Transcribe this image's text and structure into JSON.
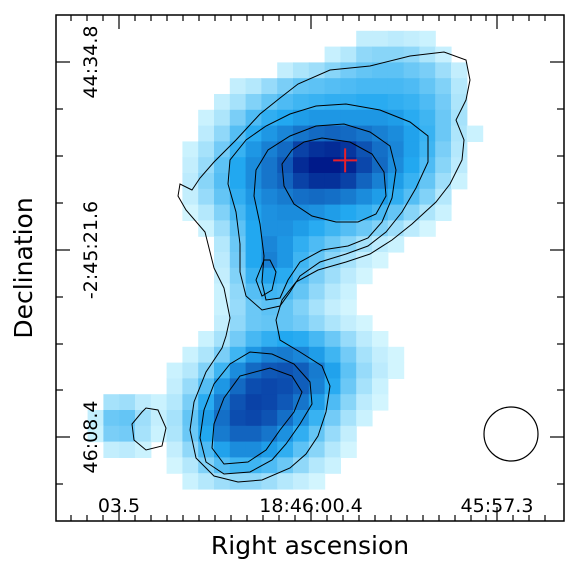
{
  "chart_data": {
    "type": "heatmap",
    "title": "",
    "xlabel": "Right ascension",
    "ylabel": "Declination",
    "x_tick_labels": [
      "03.5",
      "18:46:00.4",
      "45:57.3"
    ],
    "y_tick_labels": [
      "44:34.8",
      "-2:45:21.6",
      "46:08.4"
    ],
    "grid": false,
    "colormap": "white-cyan-blue",
    "colors": {
      "low": "#d9f8ff",
      "mid": "#22a8f0",
      "high": "#001a8a",
      "contour": "#000000",
      "marker": "#e8202a"
    },
    "intensity_grid": {
      "description_units": "relative intensity 0-1, rows top to bottom, columns left to right",
      "rows": [
        [
          0,
          0,
          0,
          0,
          0,
          0,
          0,
          0,
          0,
          0,
          0,
          0,
          0,
          0,
          0,
          0,
          0,
          0,
          0,
          0,
          0,
          0,
          0,
          0,
          0,
          0,
          0,
          0,
          0,
          0,
          0,
          0
        ],
        [
          0,
          0,
          0,
          0,
          0,
          0,
          0,
          0,
          0,
          0,
          0,
          0,
          0,
          0,
          0,
          0,
          0,
          0,
          0,
          0.06,
          0.06,
          0.08,
          0.06,
          0.04,
          0,
          0,
          0,
          0,
          0,
          0,
          0,
          0
        ],
        [
          0,
          0,
          0,
          0,
          0,
          0,
          0,
          0,
          0,
          0,
          0,
          0,
          0,
          0,
          0,
          0,
          0,
          0.05,
          0.1,
          0.2,
          0.22,
          0.22,
          0.2,
          0.12,
          0.05,
          0,
          0,
          0,
          0,
          0,
          0,
          0
        ],
        [
          0,
          0,
          0,
          0,
          0,
          0,
          0,
          0,
          0,
          0,
          0,
          0,
          0,
          0,
          0.06,
          0.12,
          0.16,
          0.22,
          0.28,
          0.32,
          0.34,
          0.34,
          0.3,
          0.26,
          0.16,
          0.06,
          0,
          0,
          0,
          0,
          0,
          0
        ],
        [
          0,
          0,
          0,
          0,
          0,
          0,
          0,
          0,
          0,
          0,
          0,
          0.06,
          0.1,
          0.18,
          0.26,
          0.32,
          0.34,
          0.36,
          0.38,
          0.4,
          0.4,
          0.4,
          0.38,
          0.32,
          0.24,
          0.1,
          0,
          0,
          0,
          0,
          0,
          0
        ],
        [
          0,
          0,
          0,
          0,
          0,
          0,
          0,
          0,
          0,
          0,
          0.06,
          0.14,
          0.24,
          0.32,
          0.38,
          0.42,
          0.44,
          0.46,
          0.46,
          0.48,
          0.48,
          0.46,
          0.44,
          0.38,
          0.28,
          0.12,
          0,
          0,
          0,
          0,
          0,
          0
        ],
        [
          0,
          0,
          0,
          0,
          0,
          0,
          0,
          0,
          0,
          0.04,
          0.12,
          0.26,
          0.38,
          0.46,
          0.5,
          0.54,
          0.56,
          0.56,
          0.56,
          0.56,
          0.56,
          0.54,
          0.48,
          0.42,
          0.3,
          0.14,
          0,
          0,
          0,
          0,
          0,
          0
        ],
        [
          0,
          0,
          0,
          0,
          0,
          0,
          0,
          0,
          0,
          0.08,
          0.2,
          0.36,
          0.48,
          0.56,
          0.62,
          0.68,
          0.72,
          0.74,
          0.72,
          0.68,
          0.64,
          0.6,
          0.52,
          0.44,
          0.3,
          0.12,
          0.04,
          0,
          0,
          0,
          0,
          0
        ],
        [
          0,
          0,
          0,
          0,
          0,
          0,
          0,
          0,
          0.04,
          0.14,
          0.28,
          0.44,
          0.56,
          0.64,
          0.72,
          0.86,
          0.92,
          0.94,
          0.9,
          0.8,
          0.7,
          0.62,
          0.52,
          0.42,
          0.26,
          0.1,
          0,
          0,
          0,
          0,
          0,
          0
        ],
        [
          0,
          0,
          0,
          0,
          0,
          0,
          0,
          0,
          0.06,
          0.18,
          0.34,
          0.5,
          0.6,
          0.68,
          0.78,
          0.94,
          1.0,
          1.0,
          0.96,
          0.84,
          0.72,
          0.6,
          0.5,
          0.38,
          0.22,
          0.08,
          0,
          0,
          0,
          0,
          0,
          0
        ],
        [
          0,
          0,
          0,
          0,
          0,
          0,
          0,
          0,
          0.08,
          0.22,
          0.36,
          0.5,
          0.6,
          0.68,
          0.74,
          0.86,
          0.92,
          0.92,
          0.86,
          0.74,
          0.64,
          0.54,
          0.44,
          0.32,
          0.16,
          0.04,
          0,
          0,
          0,
          0,
          0,
          0
        ],
        [
          0,
          0,
          0,
          0,
          0,
          0,
          0,
          0,
          0.06,
          0.18,
          0.32,
          0.46,
          0.56,
          0.62,
          0.66,
          0.7,
          0.72,
          0.7,
          0.66,
          0.6,
          0.54,
          0.46,
          0.36,
          0.24,
          0.1,
          0,
          0,
          0,
          0,
          0,
          0,
          0
        ],
        [
          0,
          0,
          0,
          0,
          0,
          0,
          0,
          0,
          0.02,
          0.1,
          0.24,
          0.4,
          0.52,
          0.58,
          0.6,
          0.6,
          0.58,
          0.54,
          0.5,
          0.46,
          0.4,
          0.32,
          0.22,
          0.12,
          0.04,
          0,
          0,
          0,
          0,
          0,
          0,
          0
        ],
        [
          0,
          0,
          0,
          0,
          0,
          0,
          0,
          0,
          0,
          0.04,
          0.16,
          0.34,
          0.5,
          0.58,
          0.58,
          0.54,
          0.48,
          0.42,
          0.36,
          0.3,
          0.24,
          0.16,
          0.08,
          0.02,
          0,
          0,
          0,
          0,
          0,
          0,
          0,
          0
        ],
        [
          0,
          0,
          0,
          0,
          0,
          0,
          0,
          0,
          0,
          0,
          0.1,
          0.3,
          0.5,
          0.62,
          0.56,
          0.46,
          0.38,
          0.3,
          0.22,
          0.14,
          0.08,
          0.04,
          0,
          0,
          0,
          0,
          0,
          0,
          0,
          0,
          0,
          0
        ],
        [
          0,
          0,
          0,
          0,
          0,
          0,
          0,
          0,
          0,
          0,
          0.08,
          0.28,
          0.5,
          0.64,
          0.56,
          0.42,
          0.32,
          0.22,
          0.14,
          0.06,
          0.02,
          0,
          0,
          0,
          0,
          0,
          0,
          0,
          0,
          0,
          0,
          0
        ],
        [
          0,
          0,
          0,
          0,
          0,
          0,
          0,
          0,
          0,
          0,
          0.06,
          0.24,
          0.44,
          0.52,
          0.48,
          0.38,
          0.26,
          0.16,
          0.08,
          0.02,
          0,
          0,
          0,
          0,
          0,
          0,
          0,
          0,
          0,
          0,
          0,
          0
        ],
        [
          0,
          0,
          0,
          0,
          0,
          0,
          0,
          0,
          0,
          0,
          0.04,
          0.2,
          0.36,
          0.42,
          0.4,
          0.32,
          0.2,
          0.1,
          0.04,
          0,
          0,
          0,
          0,
          0,
          0,
          0,
          0,
          0,
          0,
          0,
          0,
          0
        ],
        [
          0,
          0,
          0,
          0,
          0,
          0,
          0,
          0,
          0,
          0,
          0.04,
          0.18,
          0.3,
          0.34,
          0.32,
          0.24,
          0.14,
          0.06,
          0.02,
          0,
          0,
          0,
          0,
          0,
          0,
          0,
          0,
          0,
          0,
          0,
          0,
          0
        ],
        [
          0,
          0,
          0,
          0,
          0,
          0,
          0,
          0,
          0,
          0,
          0.06,
          0.2,
          0.3,
          0.32,
          0.32,
          0.28,
          0.2,
          0.12,
          0.06,
          0.02,
          0,
          0,
          0,
          0,
          0,
          0,
          0,
          0,
          0,
          0,
          0,
          0
        ],
        [
          0,
          0,
          0,
          0,
          0,
          0,
          0,
          0,
          0,
          0.04,
          0.14,
          0.28,
          0.4,
          0.46,
          0.5,
          0.48,
          0.4,
          0.3,
          0.18,
          0.08,
          0.02,
          0,
          0,
          0,
          0,
          0,
          0,
          0,
          0,
          0,
          0,
          0
        ],
        [
          0,
          0,
          0,
          0,
          0,
          0,
          0,
          0,
          0.04,
          0.12,
          0.26,
          0.42,
          0.56,
          0.64,
          0.66,
          0.62,
          0.54,
          0.42,
          0.28,
          0.14,
          0.06,
          0.02,
          0,
          0,
          0,
          0,
          0,
          0,
          0,
          0,
          0,
          0
        ],
        [
          0,
          0,
          0,
          0,
          0,
          0,
          0,
          0.04,
          0.1,
          0.24,
          0.42,
          0.6,
          0.72,
          0.78,
          0.8,
          0.76,
          0.66,
          0.52,
          0.34,
          0.18,
          0.08,
          0.02,
          0,
          0,
          0,
          0,
          0,
          0,
          0,
          0,
          0,
          0
        ],
        [
          0,
          0,
          0,
          0,
          0,
          0,
          0,
          0.06,
          0.18,
          0.36,
          0.56,
          0.72,
          0.82,
          0.84,
          0.82,
          0.76,
          0.64,
          0.48,
          0.3,
          0.14,
          0.04,
          0,
          0,
          0,
          0,
          0,
          0,
          0,
          0,
          0,
          0,
          0
        ],
        [
          0,
          0,
          0,
          0.14,
          0.16,
          0.08,
          0.04,
          0.1,
          0.26,
          0.48,
          0.66,
          0.8,
          0.86,
          0.84,
          0.78,
          0.68,
          0.54,
          0.38,
          0.22,
          0.08,
          0.02,
          0,
          0,
          0,
          0,
          0,
          0,
          0,
          0,
          0,
          0,
          0
        ],
        [
          0,
          0,
          0.06,
          0.3,
          0.32,
          0.16,
          0.06,
          0.14,
          0.32,
          0.54,
          0.7,
          0.82,
          0.84,
          0.8,
          0.7,
          0.58,
          0.44,
          0.28,
          0.14,
          0.04,
          0,
          0,
          0,
          0,
          0,
          0,
          0,
          0,
          0,
          0,
          0,
          0
        ],
        [
          0,
          0,
          0.04,
          0.26,
          0.28,
          0.14,
          0.04,
          0.12,
          0.3,
          0.5,
          0.66,
          0.74,
          0.74,
          0.68,
          0.58,
          0.46,
          0.32,
          0.18,
          0.06,
          0,
          0,
          0,
          0,
          0,
          0,
          0,
          0,
          0,
          0,
          0,
          0,
          0
        ],
        [
          0,
          0,
          0,
          0.06,
          0.08,
          0.04,
          0,
          0.06,
          0.2,
          0.38,
          0.52,
          0.6,
          0.6,
          0.54,
          0.46,
          0.34,
          0.22,
          0.1,
          0.02,
          0,
          0,
          0,
          0,
          0,
          0,
          0,
          0,
          0,
          0,
          0,
          0,
          0
        ],
        [
          0,
          0,
          0,
          0,
          0,
          0,
          0,
          0.02,
          0.1,
          0.24,
          0.36,
          0.42,
          0.42,
          0.38,
          0.3,
          0.2,
          0.1,
          0.04,
          0,
          0,
          0,
          0,
          0,
          0,
          0,
          0,
          0,
          0,
          0,
          0,
          0,
          0
        ],
        [
          0,
          0,
          0,
          0,
          0,
          0,
          0,
          0,
          0.04,
          0.1,
          0.16,
          0.2,
          0.2,
          0.16,
          0.1,
          0.06,
          0.02,
          0,
          0,
          0,
          0,
          0,
          0,
          0,
          0,
          0,
          0,
          0,
          0,
          0,
          0,
          0
        ],
        [
          0,
          0,
          0,
          0,
          0,
          0,
          0,
          0,
          0,
          0,
          0,
          0,
          0,
          0,
          0,
          0,
          0,
          0,
          0,
          0,
          0,
          0,
          0,
          0,
          0,
          0,
          0,
          0,
          0,
          0,
          0,
          0
        ]
      ]
    },
    "marker": {
      "shape": "plus",
      "column": 17.8,
      "row": 8.7
    }
  }
}
